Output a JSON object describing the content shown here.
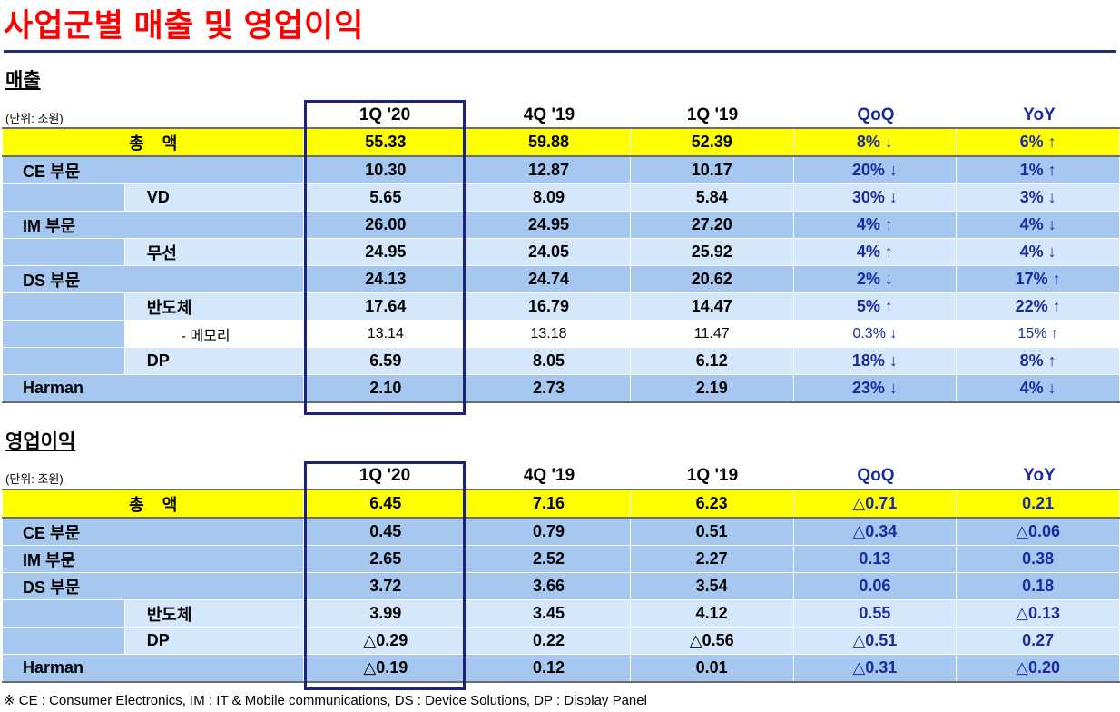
{
  "title": "사업군별 매출 및 영업이익",
  "footnote": "※ CE : Consumer Electronics,  IM : IT & Mobile communications,  DS : Device Solutions,  DP : Display Panel",
  "colors": {
    "title": "#ff0000",
    "highlight_border": "#1a237e",
    "total_row": "#ffff00",
    "segment_row": "#a6c8f0",
    "sub_row": "#d4e7fb",
    "change_text": "#1c2aa0"
  },
  "columns": [
    "1Q '20",
    "4Q '19",
    "1Q '19",
    "QoQ",
    "YoY"
  ],
  "revenue": {
    "title": "매출",
    "unit": "(단위: 조원)",
    "rows": [
      {
        "type": "total",
        "label": "총    액",
        "values": [
          "55.33",
          "59.88",
          "52.39",
          "8% ↓",
          "6% ↑"
        ]
      },
      {
        "type": "seg",
        "label": "CE 부문",
        "values": [
          "10.30",
          "12.87",
          "10.17",
          "20% ↓",
          "1% ↑"
        ]
      },
      {
        "type": "sub",
        "label": "VD",
        "values": [
          "5.65",
          "8.09",
          "5.84",
          "30% ↓",
          "3% ↓"
        ]
      },
      {
        "type": "seg",
        "label": "IM 부문",
        "values": [
          "26.00",
          "24.95",
          "27.20",
          "4% ↑",
          "4% ↓"
        ]
      },
      {
        "type": "sub",
        "label": "무선",
        "values": [
          "24.95",
          "24.05",
          "25.92",
          "4% ↑",
          "4% ↓"
        ]
      },
      {
        "type": "seg",
        "label": "DS 부문",
        "values": [
          "24.13",
          "24.74",
          "20.62",
          "2% ↓",
          "17% ↑"
        ]
      },
      {
        "type": "sub",
        "label": "반도체",
        "values": [
          "17.64",
          "16.79",
          "14.47",
          "5% ↑",
          "22% ↑"
        ]
      },
      {
        "type": "mem",
        "label": "- 메모리",
        "values": [
          "13.14",
          "13.18",
          "11.47",
          "0.3% ↓",
          "15% ↑"
        ]
      },
      {
        "type": "sub",
        "label": "DP",
        "values": [
          "6.59",
          "8.05",
          "6.12",
          "18% ↓",
          "8% ↑"
        ]
      },
      {
        "type": "seg",
        "label": "Harman",
        "values": [
          "2.10",
          "2.73",
          "2.19",
          "23% ↓",
          "4% ↓"
        ]
      }
    ]
  },
  "op_profit": {
    "title": "영업이익",
    "unit": "(단위: 조원)",
    "rows": [
      {
        "type": "total",
        "label": "총    액",
        "values": [
          "6.45",
          "7.16",
          "6.23",
          "△0.71",
          "0.21"
        ]
      },
      {
        "type": "seg",
        "label": "CE 부문",
        "values": [
          "0.45",
          "0.79",
          "0.51",
          "△0.34",
          "△0.06"
        ]
      },
      {
        "type": "seg",
        "label": "IM 부문",
        "values": [
          "2.65",
          "2.52",
          "2.27",
          "0.13",
          "0.38"
        ]
      },
      {
        "type": "seg",
        "label": "DS 부문",
        "values": [
          "3.72",
          "3.66",
          "3.54",
          "0.06",
          "0.18"
        ]
      },
      {
        "type": "sub",
        "label": "반도체",
        "values": [
          "3.99",
          "3.45",
          "4.12",
          "0.55",
          "△0.13"
        ]
      },
      {
        "type": "sub",
        "label": "DP",
        "values": [
          "△0.29",
          "0.22",
          "△0.56",
          "△0.51",
          "0.27"
        ]
      },
      {
        "type": "seg",
        "label": "Harman",
        "values": [
          "△0.19",
          "0.12",
          "0.01",
          "△0.31",
          "△0.20"
        ]
      }
    ]
  }
}
